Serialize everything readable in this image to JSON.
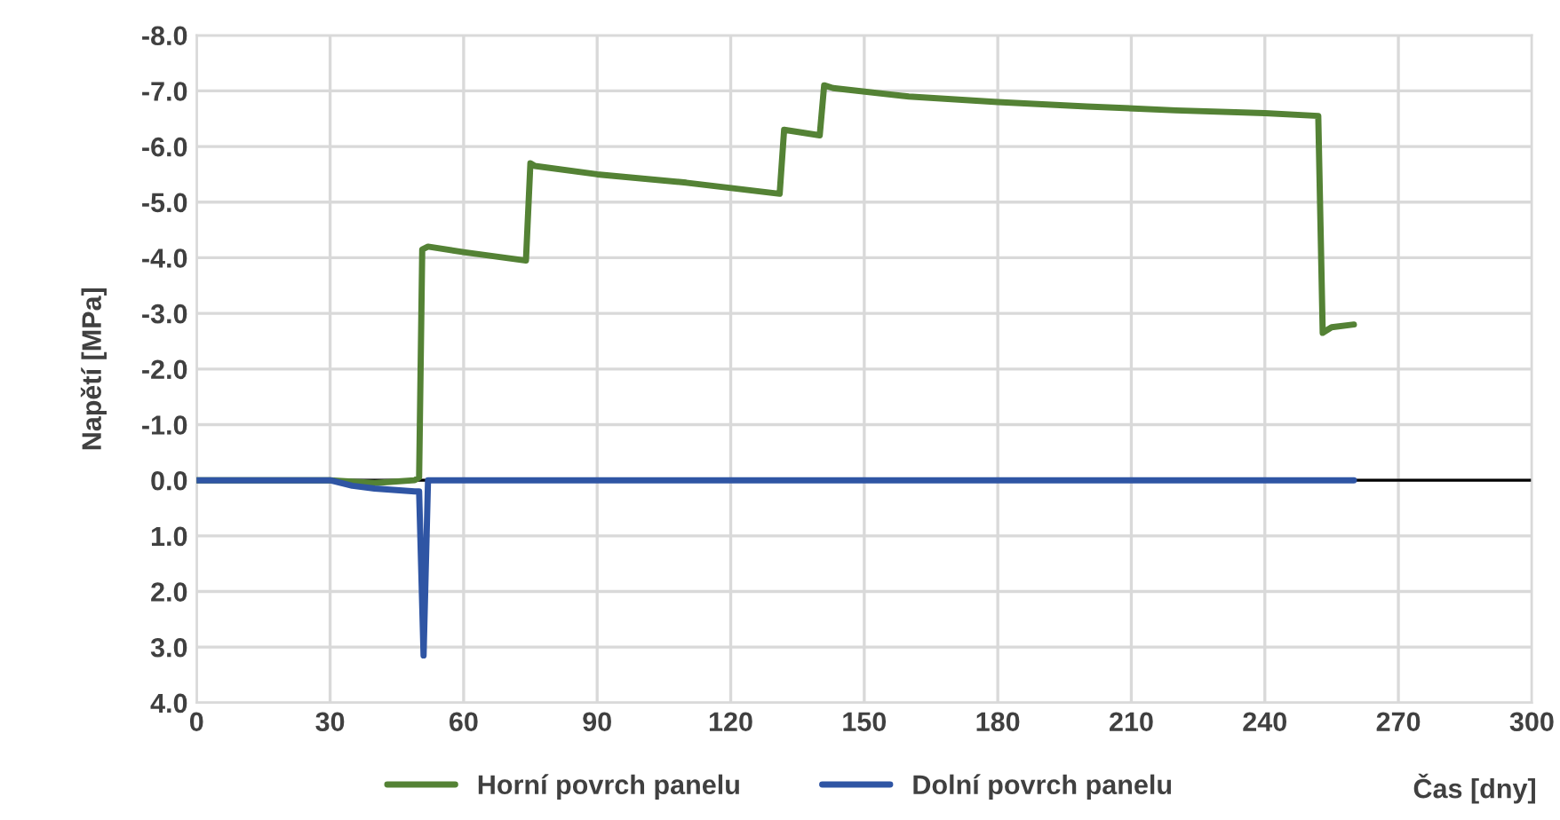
{
  "chart_data": {
    "type": "line",
    "xlabel": "Čas [dny]",
    "ylabel": "Napětí [MPa]",
    "xlim": [
      0,
      300
    ],
    "xticks": [
      0,
      30,
      60,
      90,
      120,
      150,
      180,
      210,
      240,
      270,
      300
    ],
    "ylim": [
      4,
      -8
    ],
    "yticks": [
      {
        "value": -8,
        "label": "-8.0"
      },
      {
        "value": -7,
        "label": "-7.0"
      },
      {
        "value": -6,
        "label": "-6.0"
      },
      {
        "value": -5,
        "label": "-5.0"
      },
      {
        "value": -4,
        "label": "-4.0"
      },
      {
        "value": -3,
        "label": "-3.0"
      },
      {
        "value": -2,
        "label": "-2.0"
      },
      {
        "value": -1,
        "label": "-1.0"
      },
      {
        "value": 0,
        "label": "0.0"
      },
      {
        "value": 1,
        "label": "1.0"
      },
      {
        "value": 2,
        "label": "2.0"
      },
      {
        "value": 3,
        "label": "3.0"
      },
      {
        "value": 4,
        "label": "4.0"
      }
    ],
    "grid": true,
    "legend": "bottom",
    "line_style": "solid",
    "marker": "none",
    "ref_lines": [
      {
        "axis": "y",
        "value": 0,
        "color": "#000000"
      }
    ],
    "series": [
      {
        "name": "Horní povrch panelu",
        "color": "#548235",
        "x": [
          0,
          30,
          40,
          49,
          50,
          50.7,
          52,
          60,
          74,
          75,
          76,
          90,
          110,
          131,
          132,
          140,
          141,
          143,
          160,
          180,
          200,
          220,
          240,
          252,
          253,
          255,
          260
        ],
        "values": [
          0,
          0,
          0.05,
          0,
          -0.05,
          -4.15,
          -4.2,
          -4.1,
          -3.95,
          -5.7,
          -5.65,
          -5.5,
          -5.35,
          -5.15,
          -6.3,
          -6.2,
          -7.1,
          -7.05,
          -6.9,
          -6.8,
          -6.72,
          -6.65,
          -6.6,
          -6.55,
          -2.65,
          -2.75,
          -2.8
        ]
      },
      {
        "name": "Dolní povrch panelu",
        "color": "#2f55a4",
        "x": [
          0,
          30,
          35,
          40,
          49,
          50,
          51,
          52,
          60,
          120,
          180,
          240,
          260
        ],
        "values": [
          0,
          0,
          0.1,
          0.15,
          0.2,
          0.2,
          3.15,
          0,
          0,
          0,
          0,
          0,
          0
        ]
      }
    ]
  }
}
